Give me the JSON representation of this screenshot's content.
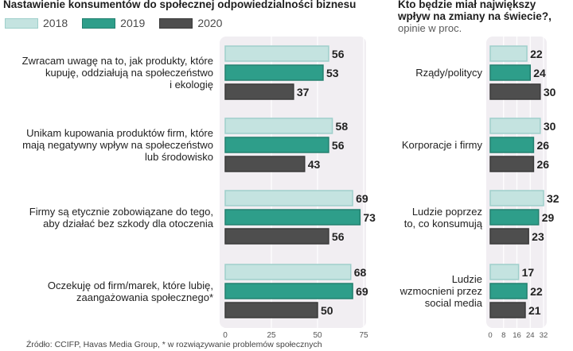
{
  "chart_data": [
    {
      "type": "bar",
      "orientation": "horizontal",
      "title": "Nastawienie konsumentów do społecznej odpowiedzialności biznesu",
      "categories": [
        "Zwracam uwagę na to, jak produkty, które kupuję, oddziałują na społeczeństwo i ekologię",
        "Unikam kupowania produktów firm, które mają negatywny wpływ na społeczeństwo lub środowisko",
        "Firmy są etycznie zobowiązane do tego, aby działać bez szkody dla otoczenia",
        "Oczekuję od firm/marek, które lubię, zaangażowania społecznego*"
      ],
      "category_lines": [
        [
          "Zwracam uwagę na to, jak produkty, które",
          "kupuję, oddziałują na społeczeństwo",
          "i ekologię"
        ],
        [
          "Unikam kupowania produktów firm, które",
          "mają negatywny wpływ na społeczeństwo",
          "lub środowisko"
        ],
        [
          "Firmy są etycznie zobowiązane do tego,",
          "aby działać bez szkody dla otoczenia"
        ],
        [
          "Oczekuję od firm/marek, które lubię,",
          "zaangażowania społecznego*"
        ]
      ],
      "series": [
        {
          "name": "2018",
          "values": [
            56,
            58,
            69,
            68
          ]
        },
        {
          "name": "2019",
          "values": [
            53,
            56,
            73,
            69
          ]
        },
        {
          "name": "2020",
          "values": [
            37,
            43,
            56,
            50
          ]
        }
      ],
      "xlim": [
        0,
        75
      ],
      "xticks": [
        "0",
        "25",
        "50",
        "75"
      ]
    },
    {
      "type": "bar",
      "orientation": "horizontal",
      "title": "Kto będzie miał największy wpływ na zmiany na świecie?,",
      "subtitle": "opinie w proc.",
      "categories": [
        "Rządy/politycy",
        "Korporacje i firmy",
        "Ludzie poprzez to, co konsumują",
        "Ludzie wzmocnieni przez social media"
      ],
      "category_lines": [
        [
          "Rządy/politycy"
        ],
        [
          "Korporacje i firmy"
        ],
        [
          "Ludzie poprzez",
          "to, co konsumują"
        ],
        [
          "Ludzie",
          "wzmocnieni przez",
          "social media"
        ]
      ],
      "series": [
        {
          "name": "2018",
          "values": [
            22,
            30,
            32,
            17
          ]
        },
        {
          "name": "2019",
          "values": [
            24,
            26,
            29,
            22
          ]
        },
        {
          "name": "2020",
          "values": [
            30,
            26,
            23,
            21
          ]
        }
      ],
      "xlim": [
        0,
        32
      ],
      "xticks": [
        "0",
        "8",
        "16",
        "24",
        "32"
      ]
    }
  ],
  "legend": [
    {
      "label": "2018",
      "color": "#c4e3e0",
      "border": "#9fcfcb"
    },
    {
      "label": "2019",
      "color": "#2e9e8a",
      "border": "#23806f"
    },
    {
      "label": "2020",
      "color": "#4e4e4e",
      "border": "#3a3a3a"
    }
  ],
  "colors": {
    "panel": "#f1eef2",
    "grid": "#ffffff"
  },
  "source": "Źródło: CCIFP, Havas Media Group,  * w rozwiązywanie problemów społecznych"
}
